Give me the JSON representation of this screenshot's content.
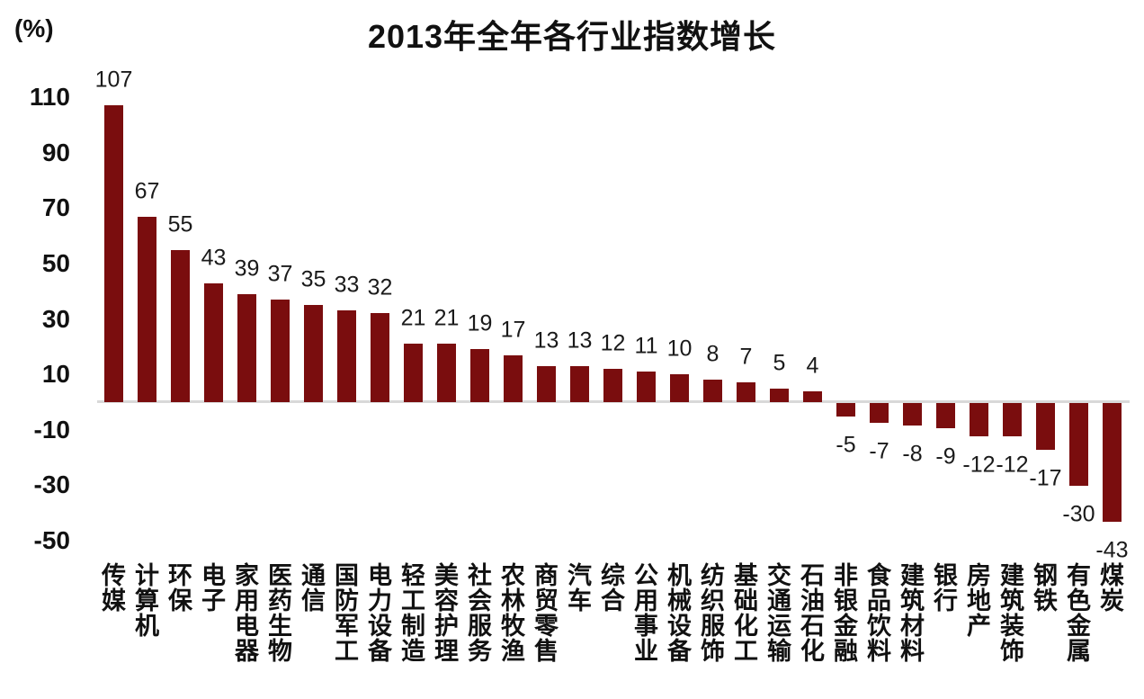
{
  "header": {
    "percent_label": "(%)",
    "title": "2013年全年各行业指数增长"
  },
  "chart_data": {
    "type": "bar",
    "title": "2013年全年各行业指数增长",
    "ylabel": "(%)",
    "xlabel": "",
    "ylim": [
      -50,
      117
    ],
    "grid": false,
    "legend": "none",
    "bar_color": "#7a0d0e",
    "baseline_color": "#d9d9d9",
    "y_ticks": [
      110,
      90,
      70,
      50,
      30,
      10,
      -10,
      -30,
      -50
    ],
    "categories": [
      "传媒",
      "计算机",
      "环保",
      "电子",
      "家用电器",
      "医药生物",
      "通信",
      "国防军工",
      "电力设备",
      "轻工制造",
      "美容护理",
      "社会服务",
      "农林牧渔",
      "商贸零售",
      "汽车",
      "综合",
      "公用事业",
      "机械设备",
      "纺织服饰",
      "基础化工",
      "交通运输",
      "石油石化",
      "非银金融",
      "食品饮料",
      "建筑材料",
      "银行",
      "房地产",
      "建筑装饰",
      "钢铁",
      "有色金属",
      "煤炭"
    ],
    "values": [
      107,
      67,
      55,
      43,
      39,
      37,
      35,
      33,
      32,
      21,
      21,
      19,
      17,
      13,
      13,
      12,
      11,
      10,
      8,
      7,
      5,
      4,
      -5,
      -7,
      -8,
      -9,
      -12,
      -12,
      -17,
      -30,
      -43
    ]
  }
}
